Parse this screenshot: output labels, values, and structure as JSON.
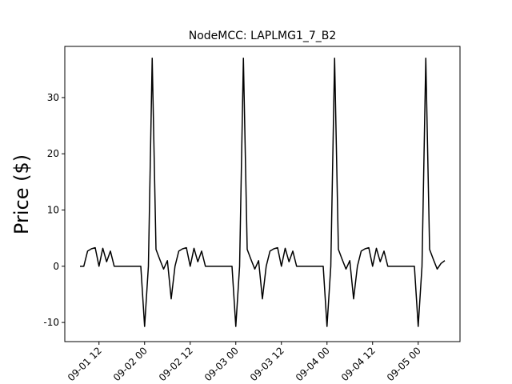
{
  "chart_data": {
    "type": "line",
    "title": "NodeMCC: LAPLMG1_7_B2",
    "ylabel": "Price ($)",
    "color": "#000000",
    "x": [
      "09-01 07",
      "09-01 08",
      "09-01 09",
      "09-01 10",
      "09-01 11",
      "09-01 12",
      "09-01 13",
      "09-01 14",
      "09-01 15",
      "09-01 16",
      "09-01 17",
      "09-01 18",
      "09-01 19",
      "09-01 20",
      "09-01 21",
      "09-01 22",
      "09-01 23",
      "09-02 00",
      "09-02 01",
      "09-02 02",
      "09-02 03",
      "09-02 04",
      "09-02 05",
      "09-02 06",
      "09-02 07",
      "09-02 08",
      "09-02 09",
      "09-02 10",
      "09-02 11",
      "09-02 12",
      "09-02 13",
      "09-02 14",
      "09-02 15",
      "09-02 16",
      "09-02 17",
      "09-02 18",
      "09-02 19",
      "09-02 20",
      "09-02 21",
      "09-02 22",
      "09-02 23",
      "09-03 00",
      "09-03 01",
      "09-03 02",
      "09-03 03",
      "09-03 04",
      "09-03 05",
      "09-03 06",
      "09-03 07",
      "09-03 08",
      "09-03 09",
      "09-03 10",
      "09-03 11",
      "09-03 12",
      "09-03 13",
      "09-03 14",
      "09-03 15",
      "09-03 16",
      "09-03 17",
      "09-03 18",
      "09-03 19",
      "09-03 20",
      "09-03 21",
      "09-03 22",
      "09-03 23",
      "09-04 00",
      "09-04 01",
      "09-04 02",
      "09-04 03",
      "09-04 04",
      "09-04 05",
      "09-04 06",
      "09-04 07",
      "09-04 08",
      "09-04 09",
      "09-04 10",
      "09-04 11",
      "09-04 12",
      "09-04 13",
      "09-04 14",
      "09-04 15",
      "09-04 16",
      "09-04 17",
      "09-04 18",
      "09-04 19",
      "09-04 20",
      "09-04 21",
      "09-04 22",
      "09-04 23",
      "09-05 00",
      "09-05 01",
      "09-05 02",
      "09-05 03",
      "09-05 04",
      "09-05 05",
      "09-05 06",
      "09-05 07"
    ],
    "values": [
      0,
      0,
      2.7,
      3.1,
      3.3,
      0,
      3.2,
      0.8,
      2.7,
      0,
      0,
      0,
      0,
      0,
      0,
      0,
      0,
      -10.7,
      0,
      37,
      3,
      1.2,
      -0.5,
      1,
      -5.8,
      0,
      2.7,
      3.1,
      3.3,
      0,
      3.2,
      0.8,
      2.7,
      0,
      0,
      0,
      0,
      0,
      0,
      0,
      0,
      -10.7,
      0,
      37,
      3,
      1.2,
      -0.5,
      1,
      -5.8,
      0,
      2.7,
      3.1,
      3.3,
      0,
      3.2,
      0.8,
      2.7,
      0,
      0,
      0,
      0,
      0,
      0,
      0,
      0,
      -10.7,
      0,
      37,
      3,
      1.2,
      -0.5,
      1,
      -5.8,
      0,
      2.7,
      3.1,
      3.3,
      0,
      3.2,
      0.8,
      2.7,
      0,
      0,
      0,
      0,
      0,
      0,
      0,
      0,
      -10.7,
      0,
      37,
      3,
      1.2,
      -0.5,
      0.5,
      1
    ],
    "xlim": [
      "09-01 03",
      "09-05 11"
    ],
    "xticks": [
      "09-01 12",
      "09-02 00",
      "09-02 12",
      "09-03 00",
      "09-03 12",
      "09-04 00",
      "09-04 12",
      "09-05 00"
    ],
    "ylim": [
      -13.4,
      39.1
    ],
    "yticks": [
      -10,
      0,
      10,
      20,
      30
    ]
  }
}
